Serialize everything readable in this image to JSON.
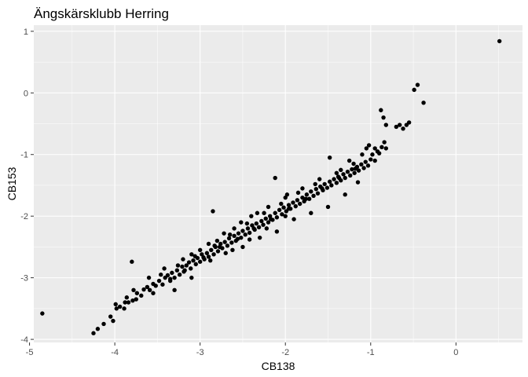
{
  "chart_data": {
    "type": "scatter",
    "title": "Ängskärsklubb Herring",
    "xlabel": "CB138",
    "ylabel": "CB153",
    "xlim": [
      -4.95,
      0.78
    ],
    "ylim": [
      -4.05,
      1.1
    ],
    "xticks": [
      -5,
      -4,
      -3,
      -2,
      -1,
      0
    ],
    "yticks": [
      -4,
      -3,
      -2,
      -1,
      0,
      1
    ],
    "xtick_labels": [
      "-5",
      "-4",
      "-3",
      "-2",
      "-1",
      "0"
    ],
    "ytick_labels": [
      "-4",
      "-3",
      "-2",
      "-1",
      "0",
      "1"
    ],
    "grid": true,
    "legend": "none",
    "colors": {
      "panel": "#ebebeb",
      "grid": "#ffffff",
      "point": "#000000"
    },
    "points": [
      [
        -4.85,
        -3.58
      ],
      [
        0.51,
        0.84
      ],
      [
        -0.45,
        0.13
      ],
      [
        -0.49,
        0.05
      ],
      [
        -0.38,
        -0.16
      ],
      [
        -4.25,
        -3.9
      ],
      [
        -4.2,
        -3.83
      ],
      [
        -4.13,
        -3.75
      ],
      [
        -4.02,
        -3.7
      ],
      [
        -4.05,
        -3.63
      ],
      [
        -3.98,
        -3.5
      ],
      [
        -3.99,
        -3.43
      ],
      [
        -3.94,
        -3.47
      ],
      [
        -3.89,
        -3.5
      ],
      [
        -3.84,
        -3.4
      ],
      [
        -3.86,
        -3.32
      ],
      [
        -3.79,
        -3.37
      ],
      [
        -3.74,
        -3.25
      ],
      [
        -3.69,
        -3.29
      ],
      [
        -3.66,
        -3.19
      ],
      [
        -3.78,
        -3.2
      ],
      [
        -3.62,
        -3.15
      ],
      [
        -3.59,
        -3.2
      ],
      [
        -3.55,
        -3.1
      ],
      [
        -3.52,
        -3.13
      ],
      [
        -3.48,
        -3.05
      ],
      [
        -3.44,
        -3.11
      ],
      [
        -3.41,
        -3.0
      ],
      [
        -3.38,
        -2.96
      ],
      [
        -3.35,
        -3.05
      ],
      [
        -3.33,
        -2.92
      ],
      [
        -3.3,
        -3.0
      ],
      [
        -3.27,
        -2.88
      ],
      [
        -3.24,
        -2.95
      ],
      [
        -3.21,
        -2.82
      ],
      [
        -3.19,
        -2.9
      ],
      [
        -3.16,
        -2.8
      ],
      [
        -3.13,
        -2.75
      ],
      [
        -3.11,
        -2.85
      ],
      [
        -3.08,
        -2.72
      ],
      [
        -3.05,
        -2.78
      ],
      [
        -3.03,
        -2.68
      ],
      [
        -3.0,
        -2.74
      ],
      [
        -2.98,
        -2.62
      ],
      [
        -2.95,
        -2.7
      ],
      [
        -2.92,
        -2.6
      ],
      [
        -2.9,
        -2.66
      ],
      [
        -2.87,
        -2.55
      ],
      [
        -2.84,
        -2.62
      ],
      [
        -2.82,
        -2.5
      ],
      [
        -2.79,
        -2.57
      ],
      [
        -2.76,
        -2.45
      ],
      [
        -2.74,
        -2.52
      ],
      [
        -2.71,
        -2.42
      ],
      [
        -2.68,
        -2.48
      ],
      [
        -2.66,
        -2.36
      ],
      [
        -2.63,
        -2.43
      ],
      [
        -2.6,
        -2.32
      ],
      [
        -2.58,
        -2.4
      ],
      [
        -2.55,
        -2.28
      ],
      [
        -2.52,
        -2.35
      ],
      [
        -2.5,
        -2.24
      ],
      [
        -2.47,
        -2.3
      ],
      [
        -2.44,
        -2.2
      ],
      [
        -2.42,
        -2.27
      ],
      [
        -2.39,
        -2.15
      ],
      [
        -2.36,
        -2.22
      ],
      [
        -2.34,
        -2.12
      ],
      [
        -2.31,
        -2.18
      ],
      [
        -2.28,
        -2.08
      ],
      [
        -2.26,
        -2.14
      ],
      [
        -2.23,
        -2.04
      ],
      [
        -2.2,
        -2.1
      ],
      [
        -2.18,
        -2.0
      ],
      [
        -2.15,
        -2.06
      ],
      [
        -2.12,
        -1.95
      ],
      [
        -2.1,
        -2.02
      ],
      [
        -2.07,
        -1.9
      ],
      [
        -2.04,
        -1.97
      ],
      [
        -2.02,
        -1.86
      ],
      [
        -1.99,
        -1.92
      ],
      [
        -1.96,
        -1.82
      ],
      [
        -1.94,
        -1.88
      ],
      [
        -1.91,
        -1.78
      ],
      [
        -1.88,
        -1.84
      ],
      [
        -1.86,
        -1.74
      ],
      [
        -1.83,
        -1.8
      ],
      [
        -1.8,
        -1.7
      ],
      [
        -1.78,
        -1.76
      ],
      [
        -1.75,
        -1.65
      ],
      [
        -1.72,
        -1.72
      ],
      [
        -1.7,
        -1.6
      ],
      [
        -1.67,
        -1.67
      ],
      [
        -1.64,
        -1.56
      ],
      [
        -1.62,
        -1.63
      ],
      [
        -1.59,
        -1.52
      ],
      [
        -1.56,
        -1.58
      ],
      [
        -1.54,
        -1.48
      ],
      [
        -1.51,
        -1.54
      ],
      [
        -1.48,
        -1.44
      ],
      [
        -1.46,
        -1.5
      ],
      [
        -1.43,
        -1.4
      ],
      [
        -1.4,
        -1.46
      ],
      [
        -1.38,
        -1.36
      ],
      [
        -1.35,
        -1.42
      ],
      [
        -1.32,
        -1.32
      ],
      [
        -1.3,
        -1.38
      ],
      [
        -1.27,
        -1.28
      ],
      [
        -1.24,
        -1.34
      ],
      [
        -1.22,
        -1.24
      ],
      [
        -1.19,
        -1.3
      ],
      [
        -1.16,
        -1.2
      ],
      [
        -1.14,
        -1.26
      ],
      [
        -1.11,
        -1.16
      ],
      [
        -1.08,
        -1.22
      ],
      [
        -1.06,
        -1.12
      ],
      [
        -1.03,
        -1.18
      ],
      [
        -1.0,
        -1.08
      ],
      [
        -0.98,
        -1.0
      ],
      [
        -0.95,
        -1.1
      ],
      [
        -0.92,
        -0.95
      ],
      [
        -0.9,
        -0.98
      ],
      [
        -0.87,
        -0.88
      ],
      [
        -0.84,
        -0.8
      ],
      [
        -0.82,
        -0.9
      ],
      [
        -0.88,
        -0.28
      ],
      [
        -0.85,
        -0.4
      ],
      [
        -0.82,
        -0.52
      ],
      [
        -0.7,
        -0.55
      ],
      [
        -0.66,
        -0.52
      ],
      [
        -0.62,
        -0.58
      ],
      [
        -0.58,
        -0.52
      ],
      [
        -0.55,
        -0.48
      ],
      [
        -3.8,
        -2.74
      ],
      [
        -2.85,
        -1.92
      ],
      [
        -2.12,
        -1.38
      ],
      [
        -1.48,
        -1.05
      ],
      [
        -1.05,
        -0.9
      ],
      [
        -3.88,
        -3.4
      ],
      [
        -3.75,
        -3.35
      ],
      [
        -3.55,
        -3.25
      ],
      [
        -3.3,
        -3.2
      ],
      [
        -3.1,
        -3.0
      ],
      [
        -2.88,
        -2.72
      ],
      [
        -2.7,
        -2.6
      ],
      [
        -2.5,
        -2.5
      ],
      [
        -2.3,
        -2.35
      ],
      [
        -2.1,
        -2.25
      ],
      [
        -1.9,
        -2.05
      ],
      [
        -1.7,
        -1.95
      ],
      [
        -1.5,
        -1.85
      ],
      [
        -1.3,
        -1.65
      ],
      [
        -1.15,
        -1.45
      ],
      [
        -3.42,
        -2.85
      ],
      [
        -3.2,
        -2.7
      ],
      [
        -3.0,
        -2.55
      ],
      [
        -2.8,
        -2.4
      ],
      [
        -2.6,
        -2.2
      ],
      [
        -2.4,
        -2.0
      ],
      [
        -2.2,
        -1.85
      ],
      [
        -2.0,
        -1.7
      ],
      [
        -1.8,
        -1.55
      ],
      [
        -1.6,
        -1.4
      ],
      [
        -1.4,
        -1.3
      ],
      [
        -1.2,
        -1.15
      ],
      [
        -3.35,
        -3.02
      ],
      [
        -3.18,
        -2.88
      ],
      [
        -2.96,
        -2.67
      ],
      [
        -2.77,
        -2.5
      ],
      [
        -2.56,
        -2.37
      ],
      [
        -2.37,
        -2.2
      ],
      [
        -2.17,
        -2.05
      ],
      [
        -1.96,
        -1.88
      ],
      [
        -1.76,
        -1.72
      ],
      [
        -1.57,
        -1.55
      ],
      [
        -1.37,
        -1.38
      ],
      [
        -1.18,
        -1.23
      ],
      [
        -2.65,
        -2.3
      ],
      [
        -2.45,
        -2.12
      ],
      [
        -2.25,
        -1.95
      ],
      [
        -2.05,
        -1.8
      ],
      [
        -1.85,
        -1.62
      ],
      [
        -1.65,
        -1.48
      ],
      [
        -2.9,
        -2.45
      ],
      [
        -2.72,
        -2.28
      ],
      [
        -2.52,
        -2.1
      ],
      [
        -2.33,
        -1.95
      ],
      [
        -1.98,
        -1.65
      ],
      [
        -3.1,
        -2.62
      ],
      [
        -2.62,
        -2.55
      ],
      [
        -2.42,
        -2.38
      ],
      [
        -2.22,
        -2.2
      ],
      [
        -2.0,
        -2.0
      ],
      [
        -3.6,
        -3.0
      ],
      [
        -3.46,
        -2.95
      ],
      [
        -3.26,
        -2.8
      ],
      [
        -3.06,
        -2.65
      ],
      [
        -2.83,
        -2.48
      ],
      [
        -1.25,
        -1.1
      ],
      [
        -1.1,
        -1.0
      ],
      [
        -1.02,
        -0.85
      ],
      [
        -0.95,
        -0.9
      ],
      [
        -1.35,
        -1.25
      ]
    ]
  }
}
